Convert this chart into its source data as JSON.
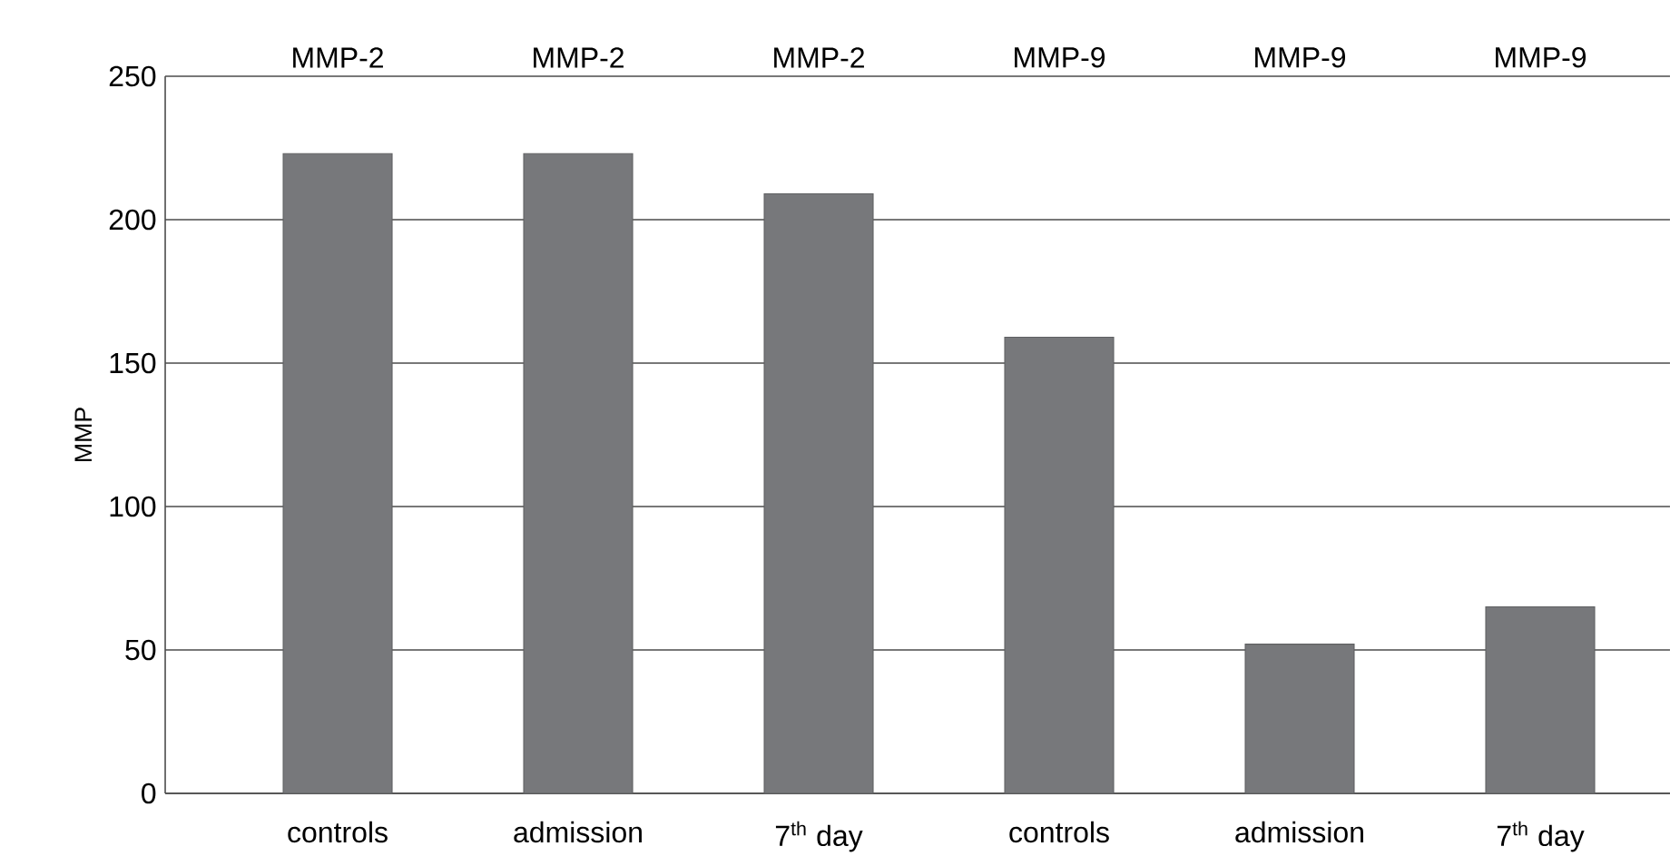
{
  "chart_data": {
    "type": "bar",
    "ylabel": "MMP",
    "categories": [
      "controls",
      "admission",
      "7$^{th}$ day",
      "controls",
      "admission",
      "7$^{th}$ day"
    ],
    "values": [
      223,
      223,
      209,
      159,
      52,
      65
    ],
    "color": "#77787b",
    "ylim": [
      0,
      250
    ],
    "yticks": [
      0,
      50,
      100,
      150,
      200,
      250
    ],
    "grid": "y",
    "annotations": [
      "MMP-2",
      "MMP-2",
      "MMP-2",
      "MMP-9",
      "MMP-9",
      "MMP-9"
    ]
  }
}
